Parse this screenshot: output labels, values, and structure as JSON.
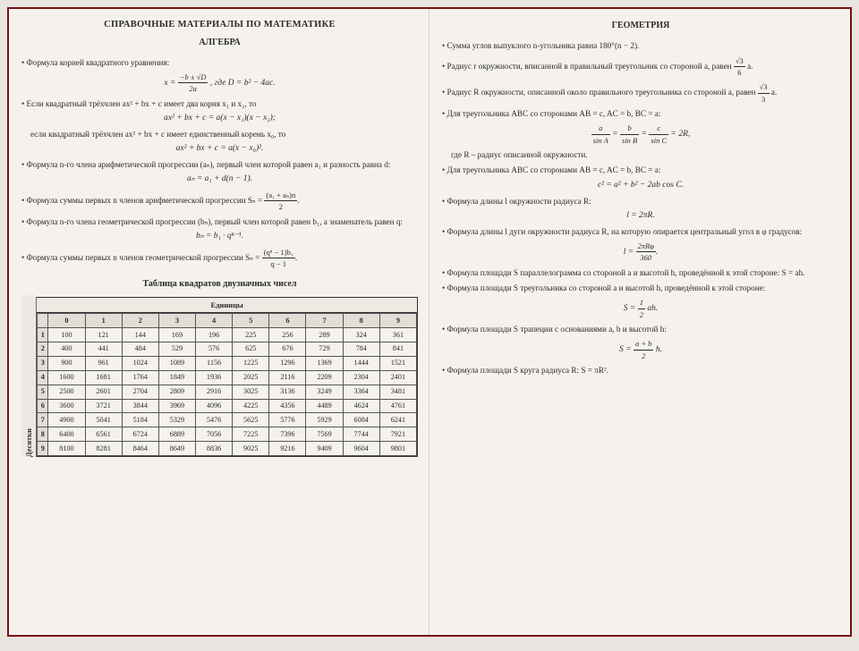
{
  "main_title": "СПРАВОЧНЫЕ МАТЕРИАЛЫ ПО МАТЕМАТИКЕ",
  "algebra": {
    "heading": "АЛГЕБРА",
    "b1": "Формула корней квадратного уравнения:",
    "f1a": "x =",
    "f1_num": "−b ± √D",
    "f1_den": "2a",
    "f1b": ", где D = b² − 4ac.",
    "b2a": "Если квадратный трёхчлен ax² + bx + c имеет два корня x₁ и x₂, то",
    "f2": "ax² + bx + c = a(x − x₁)(x − x₂);",
    "b2b": "если квадратный трёхчлен ax² + bx + c имеет единственный корень x₀, то",
    "f3": "ax² + bx + c = a(x − x₀)².",
    "b3": "Формула n-го члена арифметической прогрессии (aₙ), первый член которой равен a₁ и разность равна d:",
    "f4": "aₙ = a₁ + d(n − 1).",
    "b4": "Формула суммы первых n членов арифметической прогрессии Sₙ =",
    "f5_num": "(a₁ + aₙ)n",
    "f5_den": "2",
    "b5": "Формула n-го члена геометрической прогрессии (bₙ), первый член которой равен b₁, а знаменатель равен q:",
    "f6": "bₙ = b₁ · qⁿ⁻¹.",
    "b6": "Формула суммы первых n членов геометрической прогрессии Sₙ =",
    "f7_num": "(qⁿ − 1)b₁",
    "f7_den": "q − 1"
  },
  "table": {
    "title": "Таблица квадратов двузначных чисел",
    "units": "Единицы",
    "tens": "Десятки",
    "cols": [
      "0",
      "1",
      "2",
      "3",
      "4",
      "5",
      "6",
      "7",
      "8",
      "9"
    ],
    "rowhdr": [
      "1",
      "2",
      "3",
      "4",
      "5",
      "6",
      "7",
      "8",
      "9"
    ],
    "rows": [
      [
        "100",
        "121",
        "144",
        "169",
        "196",
        "225",
        "256",
        "289",
        "324",
        "361"
      ],
      [
        "400",
        "441",
        "484",
        "529",
        "576",
        "625",
        "676",
        "729",
        "784",
        "841"
      ],
      [
        "900",
        "961",
        "1024",
        "1089",
        "1156",
        "1225",
        "1296",
        "1369",
        "1444",
        "1521"
      ],
      [
        "1600",
        "1681",
        "1764",
        "1849",
        "1936",
        "2025",
        "2116",
        "2209",
        "2304",
        "2401"
      ],
      [
        "2500",
        "2601",
        "2704",
        "2809",
        "2916",
        "3025",
        "3136",
        "3249",
        "3364",
        "3481"
      ],
      [
        "3600",
        "3721",
        "3844",
        "3969",
        "4096",
        "4225",
        "4356",
        "4489",
        "4624",
        "4761"
      ],
      [
        "4900",
        "5041",
        "5184",
        "5329",
        "5476",
        "5625",
        "5776",
        "5929",
        "6084",
        "6241"
      ],
      [
        "6400",
        "6561",
        "6724",
        "6889",
        "7056",
        "7225",
        "7396",
        "7569",
        "7744",
        "7921"
      ],
      [
        "8100",
        "8281",
        "8464",
        "8649",
        "8836",
        "9025",
        "9216",
        "9409",
        "9604",
        "9801"
      ]
    ]
  },
  "geometry": {
    "heading": "ГЕОМЕТРИЯ",
    "b1": "Сумма углов выпуклого n-угольника равна 180°(n − 2).",
    "b2": "Радиус r окружности, вписанной в правильный треугольник со стороной a, равен",
    "f2_num": "√3",
    "f2_den": "6",
    "f2_tail": "a.",
    "b3": "Радиус R окружности, описанной около правильного треугольника со стороной a, равен",
    "f3_num": "√3",
    "f3_den": "3",
    "f3_tail": "a.",
    "b4": "Для треугольника ABC со сторонами AB = c, AC = b, BC = a:",
    "f4a_num": "a",
    "f4a_den": "sin A",
    "f4b_num": "b",
    "f4b_den": "sin B",
    "f4c_num": "c",
    "f4c_den": "sin C",
    "f4_tail": " = 2R,",
    "b4t": "где R – радиус описанной окружности.",
    "b5": "Для треугольника ABC со сторонами AB = c, AC = b, BC = a:",
    "f5": "c² = a² + b² − 2ab cos C.",
    "b6": "Формула длины l окружности радиуса R:",
    "f6": "l = 2πR.",
    "b7": "Формула длины l дуги окружности радиуса R, на которую опирается центральный угол в φ градусов:",
    "f7_num": "2πRφ",
    "f7_den": "360",
    "f7_pre": "l = ",
    "b8": "Формула площади S параллелограмма со стороной a и высотой h, проведённой к этой стороне: S = ah.",
    "b9": "Формула площади S треугольника со стороной a и высотой h, проведённой к этой стороне:",
    "f9_pre": "S = ",
    "f9_num": "1",
    "f9_den": "2",
    "f9_tail": "ah.",
    "b10": "Формула площади S трапеции с основаниями a, b и высотой h:",
    "f10_pre": "S = ",
    "f10_num": "a + b",
    "f10_den": "2",
    "f10_tail": "h.",
    "b11": "Формула площади S круга радиуса R: S = πR²."
  }
}
